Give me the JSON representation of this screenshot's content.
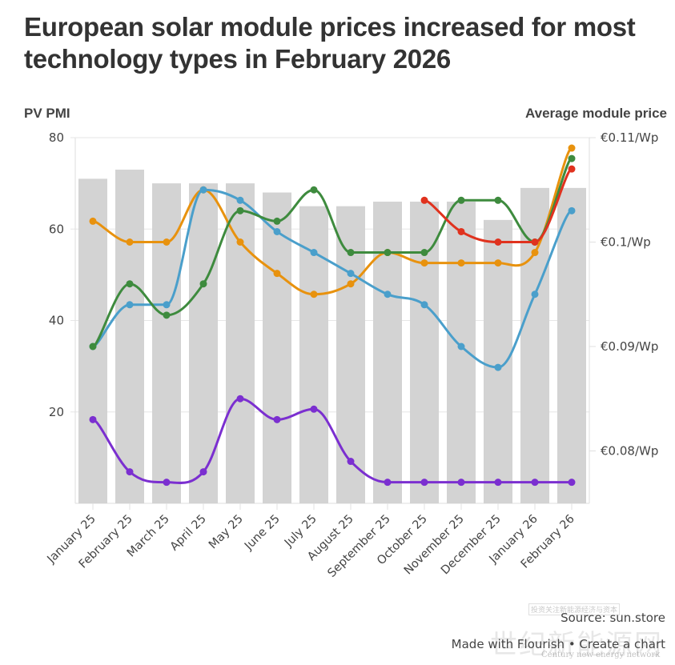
{
  "chart_data": {
    "type": "bar+line",
    "title": "European solar module prices increased for most technology types in February 2026",
    "ylabel_left": "PV PMI",
    "ylabel_right": "Average module price",
    "xlabel": "",
    "grid": true,
    "legend": "none",
    "categories": [
      "January 25",
      "February 25",
      "March 25",
      "April 25",
      "May 25",
      "June 25",
      "July 25",
      "August 25",
      "September 25",
      "October 25",
      "November 25",
      "December 25",
      "January 26",
      "February 26"
    ],
    "left_axis": {
      "ylim": [
        0,
        80
      ],
      "ticks": [
        20,
        40,
        60,
        80
      ],
      "tick_labels": [
        "20",
        "40",
        "60",
        "80"
      ]
    },
    "right_axis": {
      "ylim": [
        0.075,
        0.11
      ],
      "ticks": [
        0.08,
        0.09,
        0.1,
        0.11
      ],
      "tick_labels": [
        "€0.08/Wp",
        "€0.09/Wp",
        "€0.1/Wp",
        "€0.11/Wp"
      ]
    },
    "bars": {
      "name": "PV PMI",
      "axis": "left",
      "color": "#D3D3D3",
      "values": [
        71,
        73,
        70,
        70,
        70,
        68,
        65,
        65,
        66,
        66,
        66,
        62,
        69,
        69
      ]
    },
    "series": [
      {
        "name": "orange-series",
        "axis": "right",
        "color": "#E8920E",
        "values": [
          0.102,
          0.1,
          0.1,
          0.105,
          0.1,
          0.097,
          0.095,
          0.096,
          0.099,
          0.098,
          0.098,
          0.098,
          0.099,
          0.109
        ]
      },
      {
        "name": "blue-series",
        "axis": "right",
        "color": "#4A9FCB",
        "values": [
          0.09,
          0.094,
          0.094,
          0.105,
          0.104,
          0.101,
          0.099,
          0.097,
          0.095,
          0.094,
          0.09,
          0.088,
          0.095,
          0.103
        ]
      },
      {
        "name": "green-series",
        "axis": "right",
        "color": "#3E8B3E",
        "values": [
          0.09,
          0.096,
          0.093,
          0.096,
          0.103,
          0.102,
          0.105,
          0.099,
          0.099,
          0.099,
          0.104,
          0.104,
          0.1,
          0.108
        ]
      },
      {
        "name": "red-series",
        "axis": "right",
        "color": "#E0321E",
        "values": [
          null,
          null,
          null,
          null,
          null,
          null,
          null,
          null,
          null,
          0.104,
          0.101,
          0.1,
          0.1,
          0.107
        ]
      },
      {
        "name": "purple-series",
        "axis": "right",
        "color": "#7B2FD0",
        "values": [
          0.083,
          0.078,
          0.077,
          0.078,
          0.085,
          0.083,
          0.084,
          0.079,
          0.077,
          0.077,
          0.077,
          0.077,
          0.077,
          0.077
        ]
      }
    ]
  },
  "header": {
    "title": "European solar module prices increased for most technology types in February 2026",
    "left_axis_title": "PV PMI",
    "right_axis_title": "Average module price"
  },
  "footer": {
    "source": "Source: sun.store",
    "made_with": "Made with Flourish • Create a chart"
  },
  "watermark": {
    "cn_top": "投资关注新能源经济与资本",
    "cn_main": "世纪新能源网",
    "en": "Century new energy network"
  }
}
